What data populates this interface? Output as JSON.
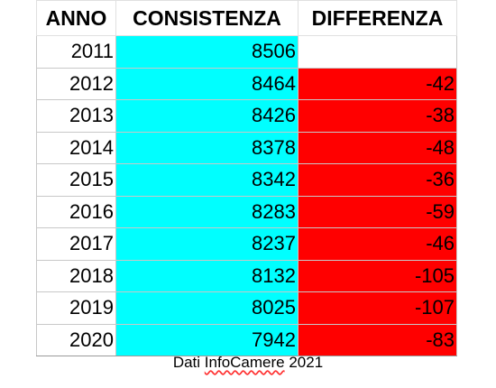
{
  "table": {
    "headers": [
      "ANNO",
      "CONSISTENZA",
      "DIFFERENZA"
    ],
    "rows": [
      [
        "2011",
        "8506",
        ""
      ],
      [
        "2012",
        "8464",
        "-42"
      ],
      [
        "2013",
        "8426",
        "-38"
      ],
      [
        "2014",
        "8378",
        "-48"
      ],
      [
        "2015",
        "8342",
        "-36"
      ],
      [
        "2016",
        "8283",
        "-59"
      ],
      [
        "2017",
        "8237",
        "-46"
      ],
      [
        "2018",
        "8132",
        "-105"
      ],
      [
        "2019",
        "8025",
        "-107"
      ],
      [
        "2020",
        "7942",
        "-83"
      ]
    ]
  },
  "caption": {
    "prefix": "Dati ",
    "word": "InfoCamere",
    "suffix": " 2021"
  },
  "colors": {
    "consistenza_fill": "#00ffff",
    "differenza_fill": "#ff0000",
    "spellcheck_underline": "#ff3030"
  }
}
